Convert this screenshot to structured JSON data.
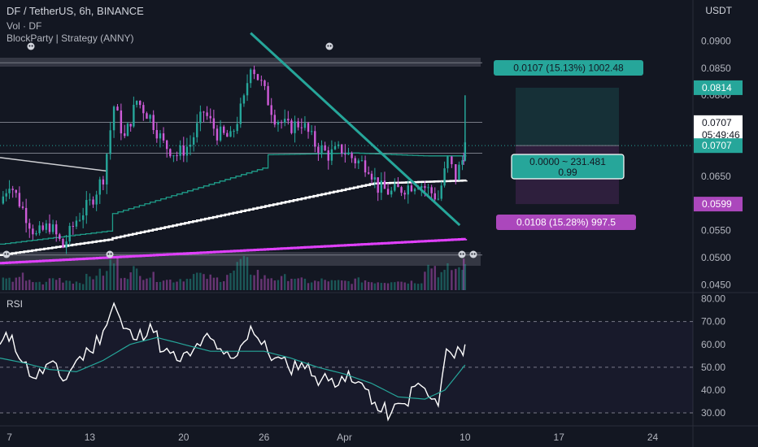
{
  "header": {
    "symbol_line": "DF / TetherUS, 6h, BINANCE",
    "volume_line": "Vol · DF",
    "strategy_line": "BlockParty | Strategy (ANNY)",
    "currency": "USDT"
  },
  "chart_data": [
    {
      "type": "candlestick",
      "title": "DF / TetherUS, 6h, BINANCE",
      "ylabel": "USDT",
      "ylim": [
        0.044,
        0.0925
      ],
      "y_ticks": [
        "0.0900",
        "0.0850",
        "0.0800",
        "0.0750",
        "0.0700",
        "0.0650",
        "0.0600",
        "0.0550",
        "0.0500",
        "0.0450"
      ],
      "y_tick_values": [
        0.09,
        0.085,
        0.08,
        0.075,
        0.07,
        0.065,
        0.06,
        0.055,
        0.05,
        0.045
      ],
      "x_ticks": [
        "7",
        "13",
        "20",
        "26",
        "Apr",
        "10",
        "17",
        "24"
      ],
      "x_tick_days": [
        7,
        13,
        20,
        26,
        32,
        41,
        48,
        55
      ],
      "x_range_days": [
        6.3,
        58.0
      ],
      "close_series": [
        {
          "day": 6.3,
          "close": 0.06
        },
        {
          "day": 7.0,
          "close": 0.064
        },
        {
          "day": 8.0,
          "close": 0.059
        },
        {
          "day": 9.0,
          "close": 0.054
        },
        {
          "day": 10.0,
          "close": 0.056
        },
        {
          "day": 11.0,
          "close": 0.052
        },
        {
          "day": 12.0,
          "close": 0.057
        },
        {
          "day": 13.0,
          "close": 0.06
        },
        {
          "day": 14.0,
          "close": 0.065
        },
        {
          "day": 14.8,
          "close": 0.078
        },
        {
          "day": 15.6,
          "close": 0.072
        },
        {
          "day": 16.5,
          "close": 0.079
        },
        {
          "day": 17.5,
          "close": 0.076
        },
        {
          "day": 18.5,
          "close": 0.071
        },
        {
          "day": 19.5,
          "close": 0.069
        },
        {
          "day": 20.5,
          "close": 0.071
        },
        {
          "day": 21.5,
          "close": 0.077
        },
        {
          "day": 22.5,
          "close": 0.073
        },
        {
          "day": 23.5,
          "close": 0.072
        },
        {
          "day": 24.5,
          "close": 0.079
        },
        {
          "day": 25.0,
          "close": 0.086
        },
        {
          "day": 25.8,
          "close": 0.082
        },
        {
          "day": 26.8,
          "close": 0.076
        },
        {
          "day": 27.8,
          "close": 0.074
        },
        {
          "day": 28.8,
          "close": 0.075
        },
        {
          "day": 29.8,
          "close": 0.071
        },
        {
          "day": 30.8,
          "close": 0.069
        },
        {
          "day": 31.8,
          "close": 0.07
        },
        {
          "day": 32.8,
          "close": 0.068
        },
        {
          "day": 33.8,
          "close": 0.067
        },
        {
          "day": 34.5,
          "close": 0.063
        },
        {
          "day": 35.5,
          "close": 0.062
        },
        {
          "day": 36.5,
          "close": 0.063
        },
        {
          "day": 37.5,
          "close": 0.064
        },
        {
          "day": 38.5,
          "close": 0.062
        },
        {
          "day": 39.0,
          "close": 0.061
        },
        {
          "day": 39.7,
          "close": 0.068
        },
        {
          "day": 40.3,
          "close": 0.065
        },
        {
          "day": 40.8,
          "close": 0.068
        },
        {
          "day": 41.0,
          "close": 0.0707
        }
      ],
      "volume_relative": [
        0.35,
        0.5,
        0.3,
        0.25,
        0.4,
        0.35,
        0.3,
        0.45,
        0.6,
        1.0,
        0.55,
        0.7,
        0.5,
        0.4,
        0.35,
        0.4,
        0.55,
        0.45,
        0.4,
        0.6,
        0.95,
        0.65,
        0.45,
        0.4,
        0.45,
        0.35,
        0.3,
        0.35,
        0.3,
        0.3,
        0.35,
        0.3,
        0.3,
        0.35,
        0.3,
        0.3,
        0.85,
        0.6,
        0.75,
        0.9
      ],
      "overlays": {
        "ema_fast_color": "#1f9e8a",
        "ema_mid_color": "#ffffff",
        "ema_slow_color": "#e040fb",
        "trendline_color": "#26a69a",
        "up_color": "#26a69a",
        "down_color": "#ce5bd8"
      },
      "horizontal_levels": [
        0.086,
        0.075,
        0.0693,
        0.0505
      ],
      "trade_box": {
        "entry": 0.0707,
        "target": 0.0814,
        "stop": 0.0599,
        "target_label": "0.0107 (15.13%) 1002.48",
        "center_label_1": "0.0000 ~ 231.481",
        "center_label_2": "0.99",
        "stop_label": "0.0108 (15.28%) 997.5"
      },
      "price_badges": [
        {
          "label": "0.0814",
          "value": 0.0814,
          "color": "#26a69a"
        },
        {
          "label": "0.0707",
          "value": 0.0707,
          "color": "#ffffff",
          "sub": "05:49:46"
        },
        {
          "label": "0.0707",
          "value": 0.0707,
          "color": "#26a69a"
        },
        {
          "label": "0.0599",
          "value": 0.0599,
          "color": "#ab47bc"
        }
      ]
    },
    {
      "type": "line",
      "title": "RSI",
      "ylim": [
        25,
        82
      ],
      "y_ticks": [
        "80.00",
        "70.00",
        "60.00",
        "50.00",
        "40.00",
        "30.00"
      ],
      "y_tick_values": [
        80,
        70,
        60,
        50,
        40,
        30
      ],
      "levels": [
        70,
        50,
        30
      ],
      "series": [
        {
          "color": "#ffffff",
          "points": [
            {
              "day": 6.3,
              "value": 60
            },
            {
              "day": 7.2,
              "value": 64
            },
            {
              "day": 8.0,
              "value": 52
            },
            {
              "day": 9.0,
              "value": 45
            },
            {
              "day": 10.0,
              "value": 52
            },
            {
              "day": 11.0,
              "value": 44
            },
            {
              "day": 12.0,
              "value": 53
            },
            {
              "day": 13.0,
              "value": 57
            },
            {
              "day": 14.0,
              "value": 66
            },
            {
              "day": 14.8,
              "value": 78
            },
            {
              "day": 15.5,
              "value": 67
            },
            {
              "day": 16.5,
              "value": 62
            },
            {
              "day": 17.5,
              "value": 69
            },
            {
              "day": 18.5,
              "value": 57
            },
            {
              "day": 19.5,
              "value": 53
            },
            {
              "day": 20.5,
              "value": 55
            },
            {
              "day": 21.5,
              "value": 63
            },
            {
              "day": 22.5,
              "value": 58
            },
            {
              "day": 23.5,
              "value": 54
            },
            {
              "day": 24.5,
              "value": 61
            },
            {
              "day": 25.0,
              "value": 68
            },
            {
              "day": 25.8,
              "value": 60
            },
            {
              "day": 26.8,
              "value": 54
            },
            {
              "day": 27.8,
              "value": 50
            },
            {
              "day": 28.8,
              "value": 52
            },
            {
              "day": 29.8,
              "value": 46
            },
            {
              "day": 30.8,
              "value": 44
            },
            {
              "day": 31.8,
              "value": 46
            },
            {
              "day": 32.8,
              "value": 43
            },
            {
              "day": 33.8,
              "value": 40
            },
            {
              "day": 34.5,
              "value": 31
            },
            {
              "day": 35.5,
              "value": 30
            },
            {
              "day": 36.5,
              "value": 34
            },
            {
              "day": 37.5,
              "value": 43
            },
            {
              "day": 38.5,
              "value": 36
            },
            {
              "day": 39.0,
              "value": 33
            },
            {
              "day": 39.6,
              "value": 58
            },
            {
              "day": 40.2,
              "value": 54
            },
            {
              "day": 40.7,
              "value": 57
            },
            {
              "day": 41.0,
              "value": 60
            }
          ]
        },
        {
          "color": "#26a69a",
          "points": [
            {
              "day": 6.3,
              "value": 54
            },
            {
              "day": 8.0,
              "value": 52
            },
            {
              "day": 10.0,
              "value": 49
            },
            {
              "day": 12.0,
              "value": 48
            },
            {
              "day": 14.0,
              "value": 53
            },
            {
              "day": 16.0,
              "value": 60
            },
            {
              "day": 18.0,
              "value": 63
            },
            {
              "day": 20.0,
              "value": 60
            },
            {
              "day": 22.0,
              "value": 57
            },
            {
              "day": 24.0,
              "value": 57
            },
            {
              "day": 26.0,
              "value": 57
            },
            {
              "day": 28.0,
              "value": 54
            },
            {
              "day": 30.0,
              "value": 50
            },
            {
              "day": 32.0,
              "value": 47
            },
            {
              "day": 34.0,
              "value": 43
            },
            {
              "day": 36.0,
              "value": 37
            },
            {
              "day": 38.0,
              "value": 36
            },
            {
              "day": 39.5,
              "value": 40
            },
            {
              "day": 41.0,
              "value": 51
            }
          ]
        }
      ]
    }
  ]
}
